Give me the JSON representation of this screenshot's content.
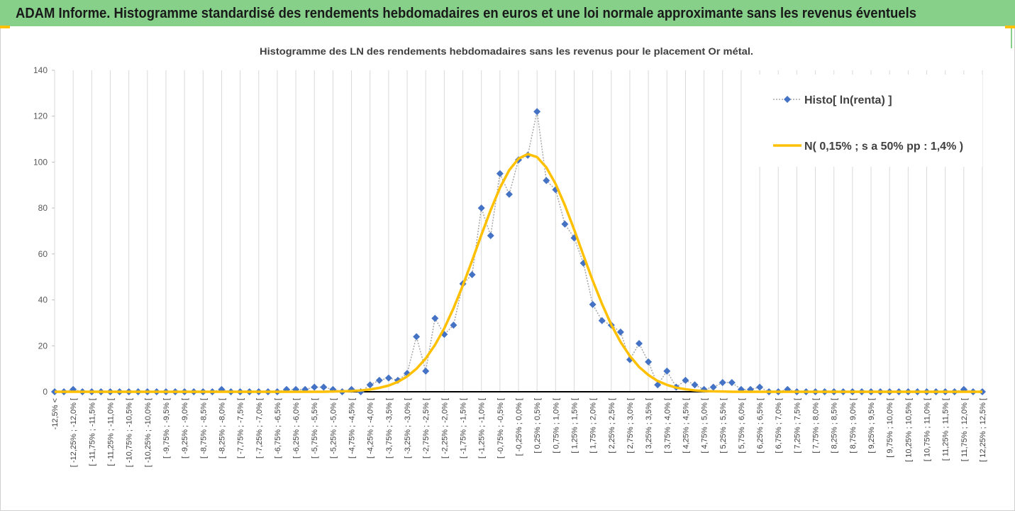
{
  "page_title": "ADAM Informe. Histogramme standardisé des rendements hebdomadaires en euros et une loi normale approximante sans les revenus éventuels",
  "chart_data": {
    "type": "line",
    "title": "Histogramme des LN des rendements hebdomadaires sans les revenus pour le placement Or métal.",
    "categories": [
      "-12,5% <",
      null,
      "[ -12,25% ; -12,0% [",
      null,
      "[ -11,75% ; -11,5% [",
      null,
      "[ -11,25% ; -11,0% [",
      null,
      "[ -10,75% ; -10,5% [",
      null,
      "[ -10,25% ; -10,0% [",
      null,
      "[ -9,75% ; -9,5% [",
      null,
      "[ -9,25% ; -9,0% [",
      null,
      "[ -8,75% ; -8,5% [",
      null,
      "[ -8,25% ; -8,0% [",
      null,
      "[ -7,75% ; -7,5% [",
      null,
      "[ -7,25% ; -7,0% [",
      null,
      "[ -6,75% ; -6,5% [",
      null,
      "[ -6,25% ; -6,0% [",
      null,
      "[ -5,75% ; -5,5% [",
      null,
      "[ -5,25% ; -5,0% [",
      null,
      "[ -4,75% ; -4,5% [",
      null,
      "[ -4,25% ; -4,0% [",
      null,
      "[ -3,75% ; -3,5% [",
      null,
      "[ -3,25% ; -3,0% [",
      null,
      "[ -2,75% ; -2,5% [",
      null,
      "[ -2,25% ; -2,0% [",
      null,
      "[ -1,75% ; -1,5% [",
      null,
      "[ -1,25% ; -1,0% [",
      null,
      "[ -0,75% ; -0,5% [",
      null,
      "[ -0,25% ; 0,0% [",
      null,
      "[ 0,25% ; 0,5% [",
      null,
      "[ 0,75% ; 1,0% [",
      null,
      "[ 1,25% ; 1,5% [",
      null,
      "[ 1,75% ; 2,0% [",
      null,
      "[ 2,25% ; 2,5% [",
      null,
      "[ 2,75% ; 3,0% [",
      null,
      "[ 3,25% ; 3,5% [",
      null,
      "[ 3,75% ; 4,0% [",
      null,
      "[ 4,25% ; 4,5% [",
      null,
      "[ 4,75% ; 5,0% [",
      null,
      "[ 5,25% ; 5,5% [",
      null,
      "[ 5,75% ; 6,0% [",
      null,
      "[ 6,25% ; 6,5% [",
      null,
      "[ 6,75% ; 7,0% [",
      null,
      "[ 7,25% ; 7,5% [",
      null,
      "[ 7,75% ; 8,0% [",
      null,
      "[ 8,25% ; 8,5% [",
      null,
      "[ 8,75% ; 9,0% [",
      null,
      "[ 9,25% ; 9,5% [",
      null,
      "[ 9,75% ; 10,0% [",
      null,
      "[ 10,25% ; 10,5% [",
      null,
      "[ 10,75% ; 11,0% [",
      null,
      "[ 11,25% ; 11,5% [",
      null,
      "[ 11,75% ; 12,0% [",
      null,
      "[ 12,25% ; 12,5% ["
    ],
    "series": [
      {
        "name": "Histo[ ln(renta) ]",
        "color": "#4472c4",
        "line_color": "#a6a6a6",
        "line_style": "dotted",
        "marker": "diamond",
        "values": [
          0,
          0,
          1,
          0,
          0,
          0,
          0,
          0,
          0,
          0,
          0,
          0,
          0,
          0,
          0,
          0,
          0,
          0,
          1,
          0,
          0,
          0,
          0,
          0,
          0,
          1,
          1,
          1,
          2,
          2,
          1,
          0,
          1,
          0,
          3,
          5,
          6,
          5,
          8,
          24,
          9,
          32,
          25,
          29,
          47,
          51,
          80,
          68,
          95,
          86,
          101,
          103,
          122,
          92,
          88,
          73,
          67,
          56,
          38,
          31,
          29,
          26,
          14,
          21,
          13,
          3,
          9,
          2,
          5,
          3,
          1,
          2,
          4,
          4,
          1,
          1,
          2,
          0,
          0,
          1,
          0,
          0,
          0,
          0,
          0,
          0,
          0,
          0,
          0,
          0,
          0,
          0,
          0,
          0,
          0,
          0,
          0,
          0,
          1,
          0,
          0
        ]
      },
      {
        "name": "N( 0,15% ; s a 50% pp : 1,4% )",
        "color": "#ffc000",
        "line_style": "solid",
        "marker": "none",
        "values": [
          0,
          0,
          0,
          0,
          0,
          0,
          0,
          0,
          0,
          0,
          0,
          0,
          0,
          0,
          0,
          0,
          0,
          0,
          0,
          0,
          0,
          0,
          0,
          0,
          0,
          0,
          0,
          0,
          0,
          0,
          0.1,
          0.2,
          0.3,
          0.6,
          1.0,
          1.7,
          2.7,
          4.3,
          6.7,
          10.0,
          14.5,
          20.4,
          27.6,
          36.4,
          46.3,
          57.1,
          68.3,
          79.1,
          88.8,
          96.5,
          101.5,
          103.5,
          102.2,
          97.7,
          90.5,
          81.2,
          70.6,
          59.4,
          48.4,
          38.3,
          29.2,
          21.7,
          15.6,
          10.8,
          7.3,
          4.7,
          3.0,
          1.8,
          1.1,
          0.6,
          0.3,
          0.2,
          0.1,
          0,
          0,
          0,
          0,
          0,
          0,
          0,
          0,
          0,
          0,
          0,
          0,
          0,
          0,
          0,
          0,
          0,
          0,
          0,
          0,
          0,
          0,
          0,
          0,
          0,
          0,
          0,
          0
        ]
      }
    ],
    "ylim": [
      0,
      140
    ],
    "yticks": [
      0,
      20,
      40,
      60,
      80,
      100,
      120,
      140
    ],
    "grid": "x",
    "legend": "upper right"
  }
}
